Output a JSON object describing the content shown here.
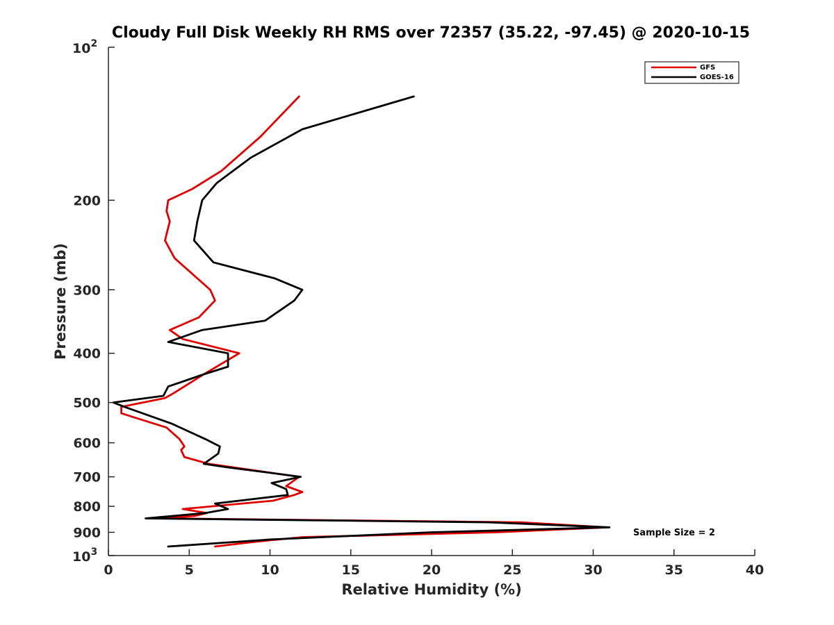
{
  "chart_data": {
    "type": "line",
    "title": "Cloudy Full Disk Weekly RH RMS over 72357 (35.22, -97.45) @ 2020-10-15",
    "xlabel": "Relative Humidity (%)",
    "ylabel": "Pressure (mb)",
    "xlim": [
      0,
      40
    ],
    "ylim": [
      100,
      1000
    ],
    "yscale": "log",
    "y_reversed": true,
    "x_ticks": [
      "0",
      "5",
      "10",
      "15",
      "20",
      "25",
      "30",
      "35",
      "40"
    ],
    "y_ticks": [
      {
        "value": 100,
        "base": "10",
        "exp": "2",
        "label": ""
      },
      {
        "value": 200,
        "label": "200"
      },
      {
        "value": 300,
        "label": "300"
      },
      {
        "value": 400,
        "label": "400"
      },
      {
        "value": 500,
        "label": "500"
      },
      {
        "value": 600,
        "label": "600"
      },
      {
        "value": 700,
        "label": "700"
      },
      {
        "value": 800,
        "label": "800"
      },
      {
        "value": 900,
        "label": "900"
      },
      {
        "value": 1000,
        "base": "10",
        "exp": "3",
        "label": ""
      }
    ],
    "grid": false,
    "legend_position": "top-right",
    "annotation": "Sample Size = 2",
    "series": [
      {
        "name": "GFS",
        "color": "#e00000",
        "points": [
          [
            11.8,
            125
          ],
          [
            9.4,
            150
          ],
          [
            7.0,
            175
          ],
          [
            5.2,
            190
          ],
          [
            3.7,
            200
          ],
          [
            3.6,
            210
          ],
          [
            3.8,
            220
          ],
          [
            3.5,
            240
          ],
          [
            4.1,
            260
          ],
          [
            6.3,
            300
          ],
          [
            6.6,
            315
          ],
          [
            5.6,
            340
          ],
          [
            3.8,
            360
          ],
          [
            4.6,
            375
          ],
          [
            8.1,
            400
          ],
          [
            5.9,
            440
          ],
          [
            4.0,
            480
          ],
          [
            3.5,
            490
          ],
          [
            0.8,
            510
          ],
          [
            0.8,
            525
          ],
          [
            3.6,
            560
          ],
          [
            4.4,
            590
          ],
          [
            4.7,
            610
          ],
          [
            4.5,
            620
          ],
          [
            4.7,
            640
          ],
          [
            6.2,
            660
          ],
          [
            11.8,
            700
          ],
          [
            11.0,
            730
          ],
          [
            12.0,
            750
          ],
          [
            11.5,
            760
          ],
          [
            10.2,
            780
          ],
          [
            4.6,
            810
          ],
          [
            6.1,
            825
          ],
          [
            5.4,
            835
          ],
          [
            3.4,
            845
          ],
          [
            25.5,
            860
          ],
          [
            30.9,
            880
          ],
          [
            24.0,
            900
          ],
          [
            12.0,
            920
          ],
          [
            9.0,
            940
          ],
          [
            6.6,
            960
          ]
        ]
      },
      {
        "name": "GOES-16",
        "color": "#000000",
        "points": [
          [
            18.9,
            125
          ],
          [
            12.0,
            145
          ],
          [
            8.8,
            165
          ],
          [
            6.7,
            185
          ],
          [
            5.8,
            200
          ],
          [
            5.5,
            220
          ],
          [
            5.3,
            240
          ],
          [
            6.5,
            265
          ],
          [
            10.3,
            285
          ],
          [
            12.0,
            300
          ],
          [
            11.5,
            315
          ],
          [
            9.7,
            345
          ],
          [
            5.8,
            360
          ],
          [
            3.7,
            380
          ],
          [
            7.4,
            400
          ],
          [
            7.4,
            425
          ],
          [
            5.9,
            440
          ],
          [
            3.7,
            465
          ],
          [
            3.4,
            485
          ],
          [
            0.3,
            500
          ],
          [
            1.0,
            510
          ],
          [
            3.9,
            550
          ],
          [
            6.0,
            590
          ],
          [
            6.9,
            610
          ],
          [
            6.8,
            630
          ],
          [
            5.9,
            660
          ],
          [
            7.3,
            670
          ],
          [
            11.9,
            700
          ],
          [
            10.1,
            720
          ],
          [
            11.0,
            740
          ],
          [
            11.1,
            760
          ],
          [
            6.6,
            790
          ],
          [
            7.4,
            810
          ],
          [
            6.0,
            825
          ],
          [
            2.3,
            845
          ],
          [
            23.5,
            860
          ],
          [
            31.0,
            880
          ],
          [
            20.0,
            900
          ],
          [
            10.0,
            930
          ],
          [
            3.7,
            960
          ]
        ]
      }
    ]
  }
}
